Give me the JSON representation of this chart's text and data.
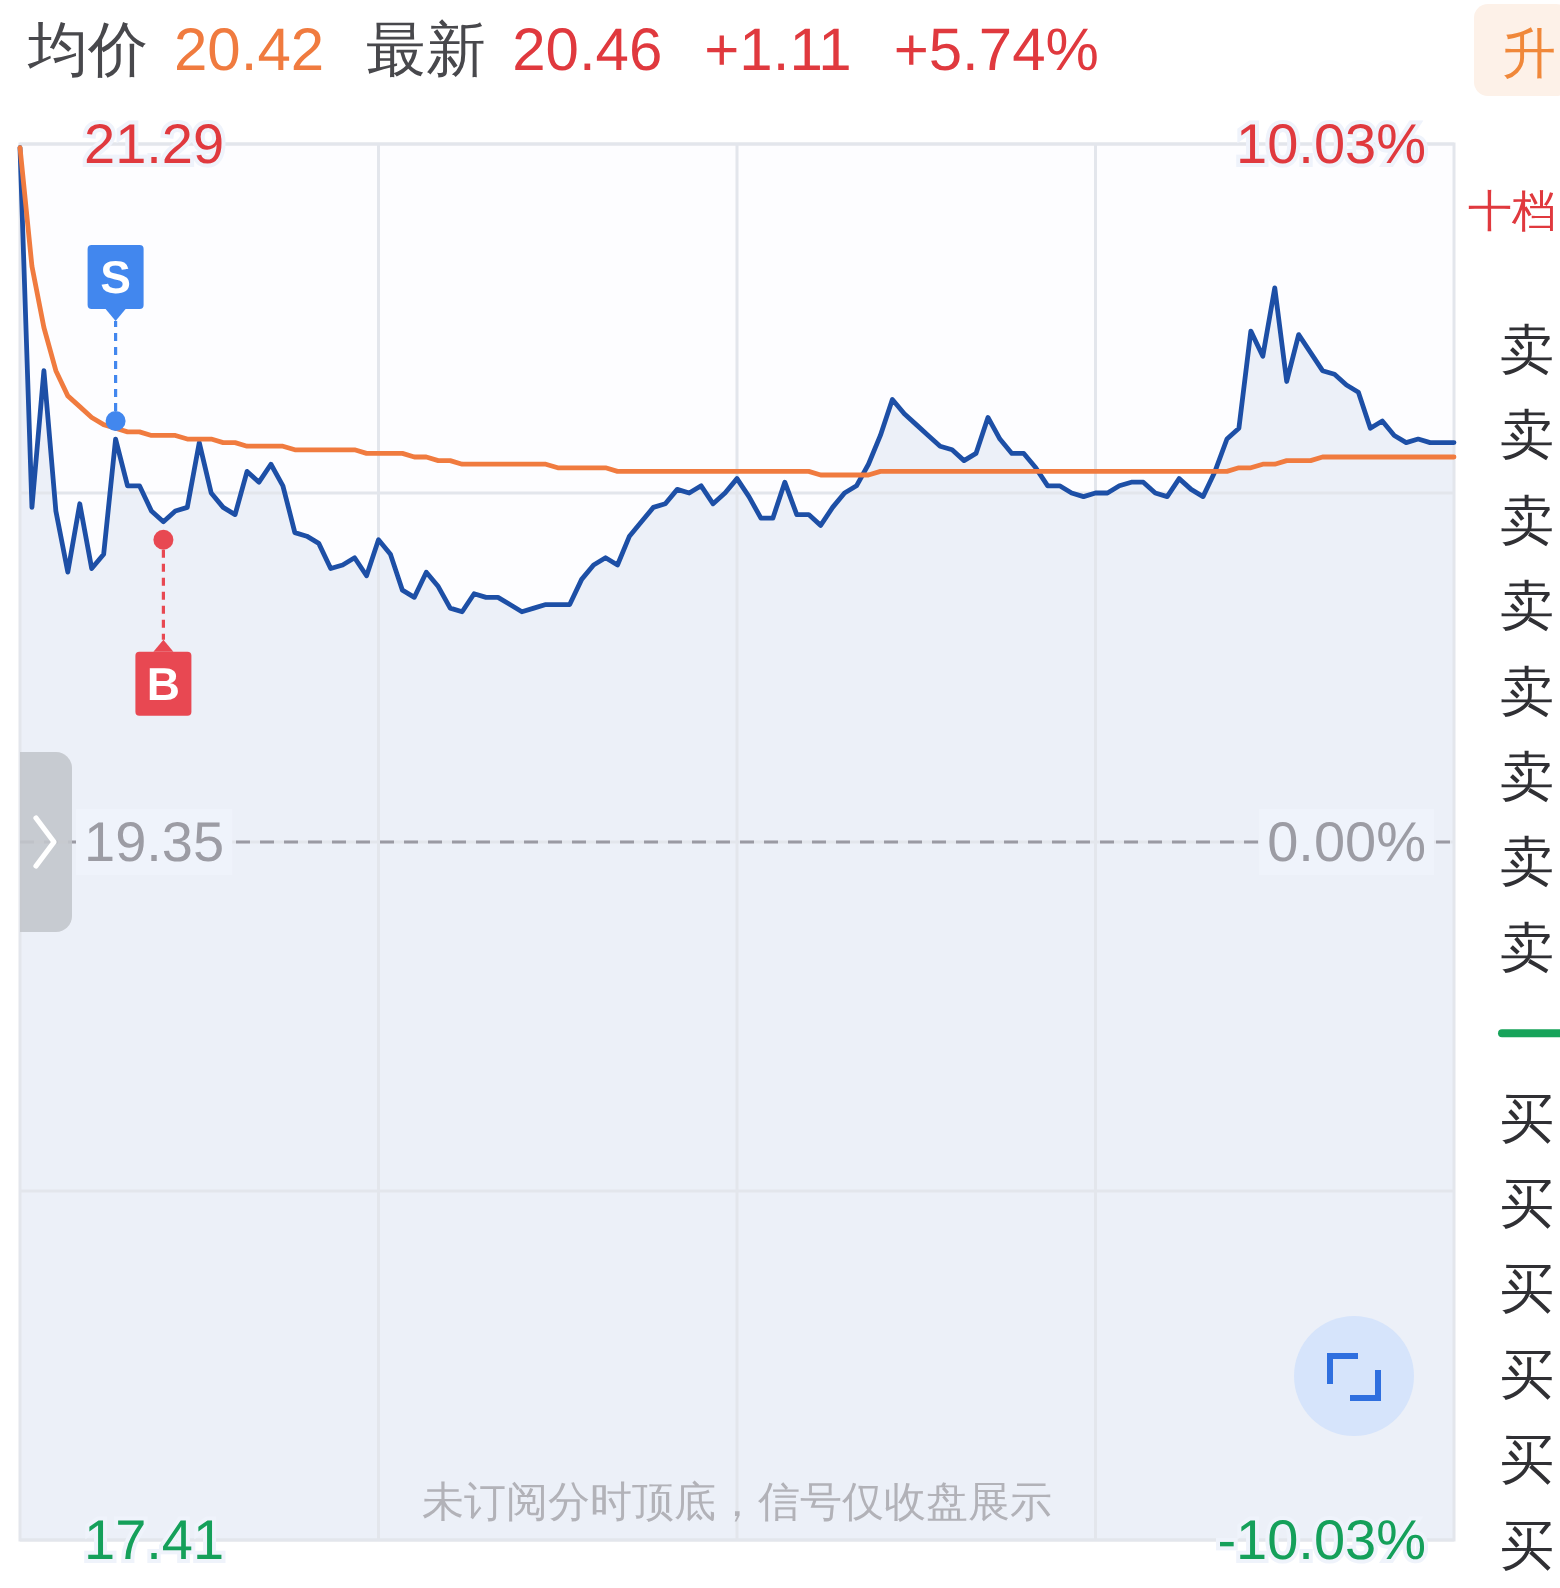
{
  "chart_data": [
    {
      "type": "area",
      "categories": [
        null,
        null,
        null,
        null,
        null,
        null,
        null,
        null,
        null,
        null,
        null,
        null,
        null,
        null,
        null,
        null,
        null,
        null,
        null,
        null,
        null,
        null,
        null,
        null,
        null,
        null,
        null,
        null,
        null,
        null,
        null,
        null,
        null,
        null,
        null,
        null,
        null,
        null,
        null,
        null,
        null,
        null,
        null,
        null,
        null,
        null,
        null,
        null,
        null,
        null,
        null,
        null,
        null,
        null,
        null,
        null,
        null,
        null,
        null,
        null,
        null,
        null,
        null,
        null,
        null,
        null,
        null,
        null,
        null,
        null,
        null,
        null,
        null,
        null,
        null,
        null,
        null,
        null,
        null,
        null,
        null,
        null,
        null,
        null,
        null,
        null,
        null,
        null,
        null,
        null,
        null,
        null,
        null,
        null,
        null,
        null,
        null,
        null,
        null,
        null,
        null,
        null,
        null,
        null,
        null,
        null,
        null,
        null,
        null,
        null,
        null,
        null,
        null,
        null,
        null,
        null,
        null,
        null,
        null,
        null,
        null
      ],
      "series": [
        {
          "type": "area",
          "color": "#1d4fa6",
          "values": [
            21.28,
            20.28,
            20.66,
            20.27,
            20.1,
            20.29,
            20.11,
            20.15,
            20.47,
            20.34,
            20.34,
            20.27,
            20.24,
            20.27,
            20.28,
            20.46,
            20.32,
            20.28,
            20.26,
            20.38,
            20.35,
            20.4,
            20.34,
            20.21,
            20.2,
            20.18,
            20.11,
            20.12,
            20.14,
            20.09,
            20.19,
            20.15,
            20.05,
            20.03,
            20.1,
            20.06,
            20.0,
            19.99,
            20.04,
            20.03,
            20.03,
            20.01,
            19.99,
            20.0,
            20.01,
            20.01,
            20.01,
            20.08,
            20.12,
            20.14,
            20.12,
            20.2,
            20.24,
            20.28,
            20.29,
            20.33,
            20.32,
            20.34,
            20.29,
            20.32,
            20.36,
            20.31,
            20.25,
            20.25,
            20.35,
            20.26,
            20.26,
            20.23,
            20.28,
            20.32,
            20.34,
            20.4,
            20.48,
            20.58,
            20.54,
            20.51,
            20.48,
            20.45,
            20.44,
            20.41,
            20.43,
            20.53,
            20.47,
            20.43,
            20.43,
            20.39,
            20.34,
            20.34,
            20.32,
            20.31,
            20.32,
            20.32,
            20.34,
            20.35,
            20.35,
            20.32,
            20.31,
            20.36,
            20.33,
            20.31,
            20.38,
            20.47,
            20.5,
            20.77,
            20.7,
            20.89,
            20.63,
            20.76,
            20.71,
            20.66,
            20.65,
            20.62,
            20.6,
            20.5,
            20.52,
            20.48,
            20.46,
            20.47,
            20.46,
            20.46,
            20.46
          ]
        },
        {
          "type": "line",
          "color": "#f07b3f",
          "values": [
            21.28,
            20.95,
            20.78,
            20.66,
            20.59,
            20.56,
            20.53,
            20.51,
            20.5,
            20.49,
            20.49,
            20.48,
            20.48,
            20.48,
            20.47,
            20.47,
            20.47,
            20.46,
            20.46,
            20.45,
            20.45,
            20.45,
            20.45,
            20.44,
            20.44,
            20.44,
            20.44,
            20.44,
            20.44,
            20.43,
            20.43,
            20.43,
            20.43,
            20.42,
            20.42,
            20.41,
            20.41,
            20.4,
            20.4,
            20.4,
            20.4,
            20.4,
            20.4,
            20.4,
            20.4,
            20.39,
            20.39,
            20.39,
            20.39,
            20.39,
            20.38,
            20.38,
            20.38,
            20.38,
            20.38,
            20.38,
            20.38,
            20.38,
            20.38,
            20.38,
            20.38,
            20.38,
            20.38,
            20.38,
            20.38,
            20.38,
            20.38,
            20.37,
            20.37,
            20.37,
            20.37,
            20.37,
            20.38,
            20.38,
            20.38,
            20.38,
            20.38,
            20.38,
            20.38,
            20.38,
            20.38,
            20.38,
            20.38,
            20.38,
            20.38,
            20.38,
            20.38,
            20.38,
            20.38,
            20.38,
            20.38,
            20.38,
            20.38,
            20.38,
            20.38,
            20.38,
            20.38,
            20.38,
            20.38,
            20.38,
            20.38,
            20.38,
            20.39,
            20.39,
            20.4,
            20.4,
            20.41,
            20.41,
            20.41,
            20.42,
            20.42,
            20.42,
            20.42,
            20.42,
            20.42,
            20.42,
            20.42,
            20.42,
            20.42,
            20.42,
            20.42
          ]
        },
        {
          "type": "scatter",
          "name": "S",
          "color": "#4287ee",
          "values": [
            null,
            null,
            null,
            null,
            null,
            null,
            null,
            null,
            20.52,
            null,
            null,
            null,
            null,
            null,
            null,
            null,
            null,
            null,
            null,
            null,
            null,
            null,
            null,
            null,
            null,
            null,
            null,
            null,
            null,
            null,
            null,
            null,
            null,
            null,
            null,
            null,
            null,
            null,
            null,
            null,
            null,
            null,
            null,
            null,
            null,
            null,
            null,
            null,
            null,
            null,
            null,
            null,
            null,
            null,
            null,
            null,
            null,
            null,
            null,
            null,
            null,
            null,
            null,
            null,
            null,
            null,
            null,
            null,
            null,
            null,
            null,
            null,
            null,
            null,
            null,
            null,
            null,
            null,
            null,
            null,
            null,
            null,
            null,
            null,
            null,
            null,
            null,
            null,
            null,
            null,
            null,
            null,
            null,
            null,
            null,
            null,
            null,
            null,
            null,
            null,
            null,
            null,
            null,
            null,
            null,
            null,
            null,
            null,
            null,
            null,
            null,
            null,
            null,
            null,
            null,
            null,
            null,
            null,
            null,
            null,
            null
          ]
        },
        {
          "type": "scatter",
          "name": "B",
          "color": "#e84852",
          "values": [
            null,
            null,
            null,
            null,
            null,
            null,
            null,
            null,
            null,
            null,
            null,
            null,
            20.19,
            null,
            null,
            null,
            null,
            null,
            null,
            null,
            null,
            null,
            null,
            null,
            null,
            null,
            null,
            null,
            null,
            null,
            null,
            null,
            null,
            null,
            null,
            null,
            null,
            null,
            null,
            null,
            null,
            null,
            null,
            null,
            null,
            null,
            null,
            null,
            null,
            null,
            null,
            null,
            null,
            null,
            null,
            null,
            null,
            null,
            null,
            null,
            null,
            null,
            null,
            null,
            null,
            null,
            null,
            null,
            null,
            null,
            null,
            null,
            null,
            null,
            null,
            null,
            null,
            null,
            null,
            null,
            null,
            null,
            null,
            null,
            null,
            null,
            null,
            null,
            null,
            null,
            null,
            null,
            null,
            null,
            null,
            null,
            null,
            null,
            null,
            null,
            null,
            null,
            null,
            null,
            null,
            null,
            null,
            null,
            null,
            null,
            null,
            null,
            null,
            null,
            null,
            null,
            null,
            null,
            null,
            null,
            null
          ]
        }
      ],
      "ylim": [
        17.41,
        21.29
      ],
      "yticks": [
        17.41,
        {
          "value": 18.38,
          "label": null
        },
        19.35,
        {
          "value": 20.32,
          "label": null
        },
        21.29
      ],
      "y2lim": [
        -10.03,
        10.03
      ],
      "y2ticks": [
        {
          "value": -10.03,
          "label": "-10.03%"
        },
        {
          "value": 0,
          "label": "0.00%"
        },
        {
          "value": 10.03,
          "label": "10.03%"
        }
      ],
      "ref_lines": [
        {
          "axis": "y",
          "value": 19.35,
          "line_style": "dashed",
          "color": "#9a9aa3"
        }
      ],
      "grid": true,
      "annotations": [
        "均价",
        "20.42",
        "最新",
        "20.46",
        "+1.11",
        "+5.74%",
        "未订阅分时顶底，信号仅收盘展示"
      ]
    },
    {
      "type": "other",
      "annotations": [
        "升",
        "十档",
        "卖",
        "卖",
        "卖",
        "卖",
        "卖",
        "卖",
        "卖",
        "卖",
        "买",
        "买",
        "买",
        "买",
        "买",
        "买"
      ]
    }
  ]
}
